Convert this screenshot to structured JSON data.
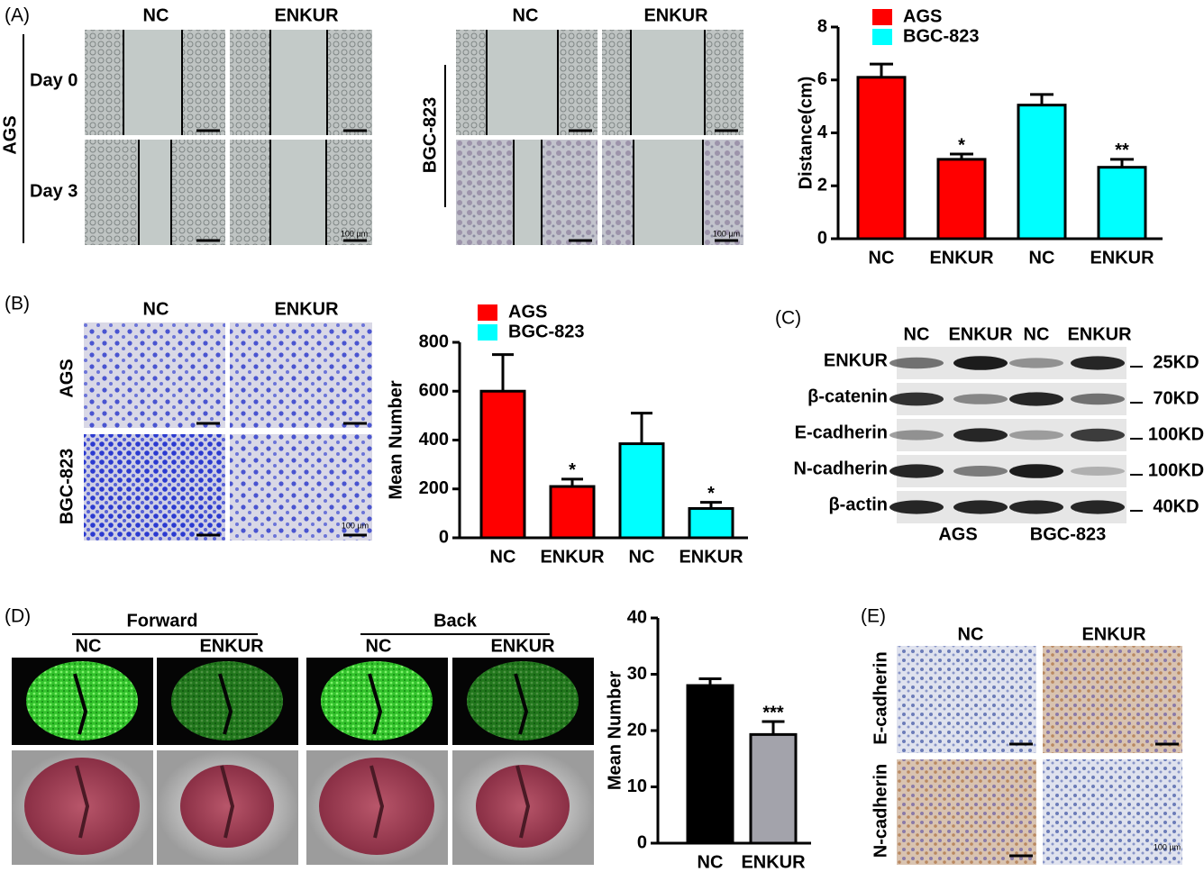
{
  "chart_data": [
    {
      "type": "bar",
      "ylabel": "Distance(cm)",
      "categories": [
        "NC",
        "ENKUR",
        "NC",
        "ENKUR"
      ],
      "series": [
        {
          "name": "AGS",
          "color": "#ff0000",
          "values": [
            6.1,
            3.0,
            null,
            null
          ],
          "errors": [
            0.5,
            0.2,
            null,
            null
          ]
        },
        {
          "name": "BGC-823",
          "color": "#00ffff",
          "values": [
            null,
            null,
            5.05,
            2.7
          ],
          "errors": [
            null,
            null,
            0.4,
            0.3
          ]
        }
      ],
      "significance": [
        null,
        "*",
        null,
        "**"
      ],
      "ylim": [
        0,
        8
      ],
      "yticks": [
        0,
        2,
        4,
        6,
        8
      ],
      "legend": "upper left"
    },
    {
      "type": "bar",
      "ylabel": "Mean Number",
      "categories": [
        "NC",
        "ENKUR",
        "NC",
        "ENKUR"
      ],
      "series": [
        {
          "name": "AGS",
          "color": "#ff0000",
          "values": [
            600,
            210,
            null,
            null
          ],
          "errors": [
            150,
            30,
            null,
            null
          ]
        },
        {
          "name": "BGC-823",
          "color": "#00ffff",
          "values": [
            null,
            null,
            385,
            120
          ],
          "errors": [
            null,
            null,
            125,
            25
          ]
        }
      ],
      "significance": [
        null,
        "*",
        null,
        "*"
      ],
      "ylim": [
        0,
        800
      ],
      "yticks": [
        0,
        200,
        400,
        600,
        800
      ],
      "legend": "upper left"
    },
    {
      "type": "bar",
      "ylabel": "Mean Number",
      "categories": [
        "NC",
        "ENKUR"
      ],
      "values": [
        28,
        19.3
      ],
      "errors": [
        1.2,
        2.3
      ],
      "colors": [
        "#000000",
        "#a3a3ab"
      ],
      "significance": [
        null,
        "***"
      ],
      "ylim": [
        0,
        40
      ],
      "yticks": [
        0,
        10,
        20,
        30,
        40
      ]
    }
  ],
  "panels": {
    "A": {
      "label": "(A)",
      "AGS": {
        "columns": [
          "NC",
          "ENKUR"
        ],
        "name": "AGS",
        "rows": [
          "Day 0",
          "Day 3"
        ],
        "scale_bar": "100 µm"
      },
      "BGC": {
        "columns": [
          "NC",
          "ENKUR"
        ],
        "name": "BGC-823",
        "scale_bar": "100 µm"
      }
    },
    "B": {
      "label": "(B)",
      "columns": [
        "NC",
        "ENKUR"
      ],
      "rows": [
        "AGS",
        "BGC-823"
      ],
      "scale_bar": "100 µm"
    },
    "C": {
      "label": "(C)",
      "lanes": [
        "NC",
        "ENKUR",
        "NC",
        "ENKUR"
      ],
      "proteins": [
        "ENKUR",
        "β-catenin",
        "E-cadherin",
        "N-cadherin",
        "β-actin"
      ],
      "sizes": [
        "25KD",
        "70KD",
        "100KD",
        "100KD",
        "40KD"
      ],
      "groups": [
        "AGS",
        "BGC-823"
      ]
    },
    "D": {
      "label": "(D)",
      "views": [
        {
          "name": "Forward",
          "columns": [
            "NC",
            "ENKUR"
          ]
        },
        {
          "name": "Back",
          "columns": [
            "NC",
            "ENKUR"
          ]
        }
      ]
    },
    "E": {
      "label": "(E)",
      "columns": [
        "NC",
        "ENKUR"
      ],
      "rows": [
        "E-cadherin",
        "N-cadherin"
      ],
      "scale_bar": "100 µm"
    }
  }
}
